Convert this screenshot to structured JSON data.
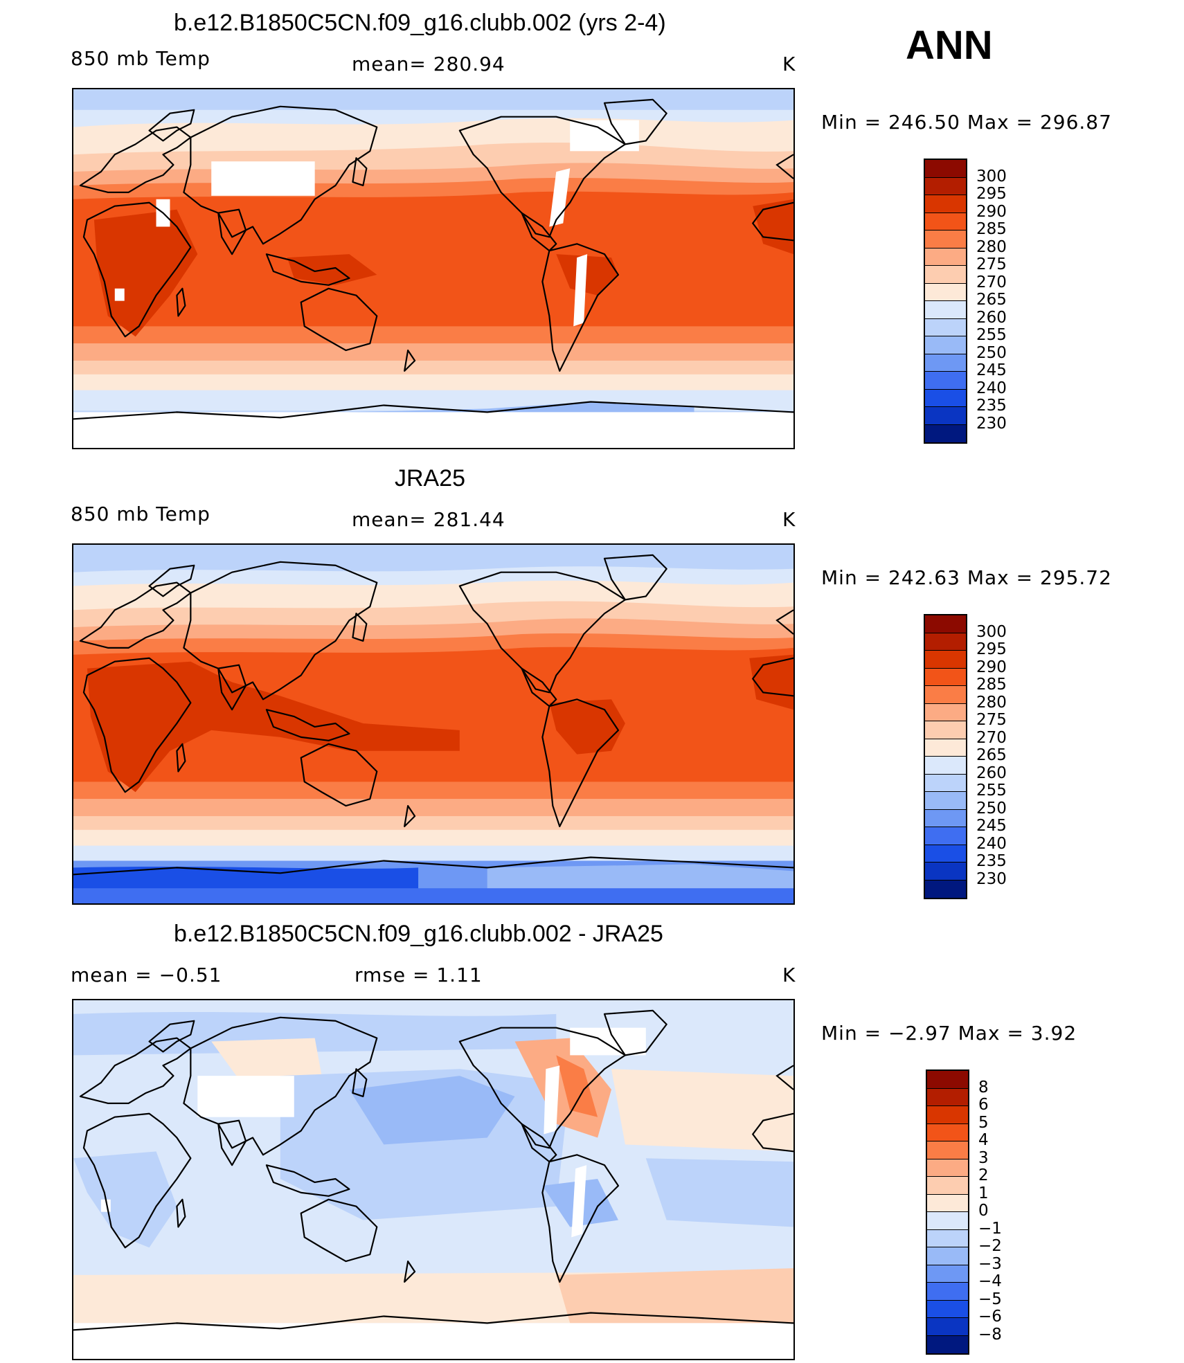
{
  "annotation": "ANN",
  "panels": [
    {
      "title": "b.e12.B1850C5CN.f09_g16.clubb.002 (yrs 2-4)",
      "left_label": "850 mb Temp",
      "center_label": "mean= 280.94",
      "units": "K",
      "minmax": "Min = 246.50 Max = 296.87",
      "scale": "temp"
    },
    {
      "title": "JRA25",
      "left_label": "850 mb Temp",
      "center_label": "mean= 281.44",
      "units": "K",
      "minmax": "Min = 242.63 Max = 295.72",
      "scale": "temp"
    },
    {
      "title": "b.e12.B1850C5CN.f09_g16.clubb.002 - JRA25",
      "left_label": "mean =    −0.51",
      "center_label": "rmse =     1.11",
      "units": "K",
      "minmax": "Min =    −2.97 Max =      3.92",
      "scale": "diff"
    }
  ],
  "colorbars": {
    "temp": {
      "labels": [
        "300",
        "295",
        "290",
        "285",
        "280",
        "275",
        "270",
        "265",
        "260",
        "255",
        "250",
        "245",
        "240",
        "235",
        "230"
      ],
      "colors": [
        "#8c0a00",
        "#b31e00",
        "#d93600",
        "#f25418",
        "#fa7d46",
        "#fcab84",
        "#fdcdb0",
        "#fde9d8",
        "#dbe8fb",
        "#bcd3fa",
        "#99baf7",
        "#6e98f4",
        "#3f6ef1",
        "#1a4fe6",
        "#0a35c2",
        "#00187f"
      ]
    },
    "diff": {
      "labels": [
        "8",
        "6",
        "5",
        "4",
        "3",
        "2",
        "1",
        "0",
        "−1",
        "−2",
        "−3",
        "−4",
        "−5",
        "−6",
        "−8"
      ],
      "colors": [
        "#8c0a00",
        "#b31e00",
        "#d93600",
        "#f25418",
        "#fa7d46",
        "#fcab84",
        "#fdcdb0",
        "#fde9d8",
        "#dbe8fb",
        "#bcd3fa",
        "#99baf7",
        "#6e98f4",
        "#3f6ef1",
        "#1a4fe6",
        "#0a35c2",
        "#00187f"
      ]
    }
  }
}
